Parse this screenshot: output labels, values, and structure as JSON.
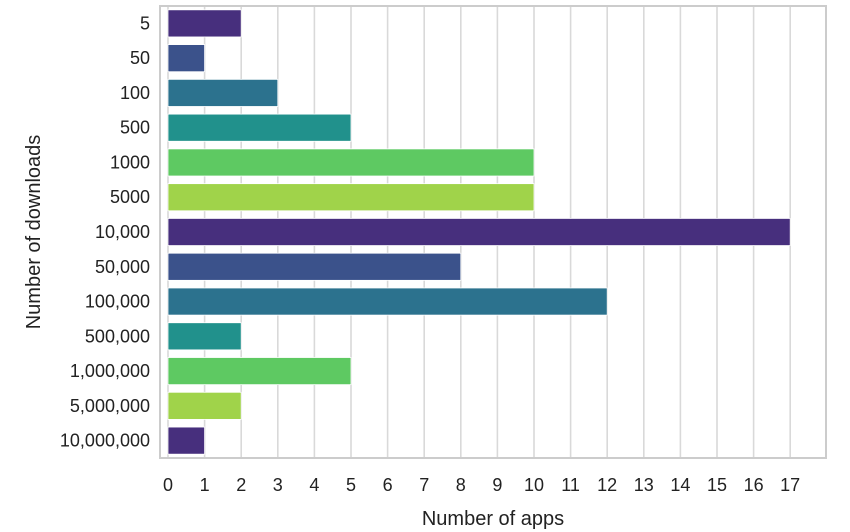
{
  "chart_data": {
    "type": "bar",
    "orientation": "horizontal",
    "title": "",
    "xlabel": "Number of apps",
    "ylabel": "Number of downloads",
    "categories": [
      "5",
      "50",
      "100",
      "500",
      "1000",
      "5000",
      "10,000",
      "50,000",
      "100,000",
      "500,000",
      "1,000,000",
      "5,000,000",
      "10,000,000"
    ],
    "values": [
      2,
      1,
      3,
      5,
      10,
      10,
      17,
      8,
      12,
      2,
      5,
      2,
      1
    ],
    "xlim": [
      0,
      18
    ],
    "xticks": [
      0,
      1,
      2,
      3,
      4,
      5,
      6,
      7,
      8,
      9,
      10,
      11,
      12,
      13,
      14,
      15,
      16,
      17
    ],
    "grid": "vertical",
    "legend": "none",
    "colors": [
      "#472f7d",
      "#3b528b",
      "#2c728e",
      "#21918c",
      "#5ec962",
      "#a0d34a",
      "#472f7d",
      "#3b528b",
      "#2c728e",
      "#21918c",
      "#5ec962",
      "#a0d34a",
      "#472f7d"
    ]
  }
}
